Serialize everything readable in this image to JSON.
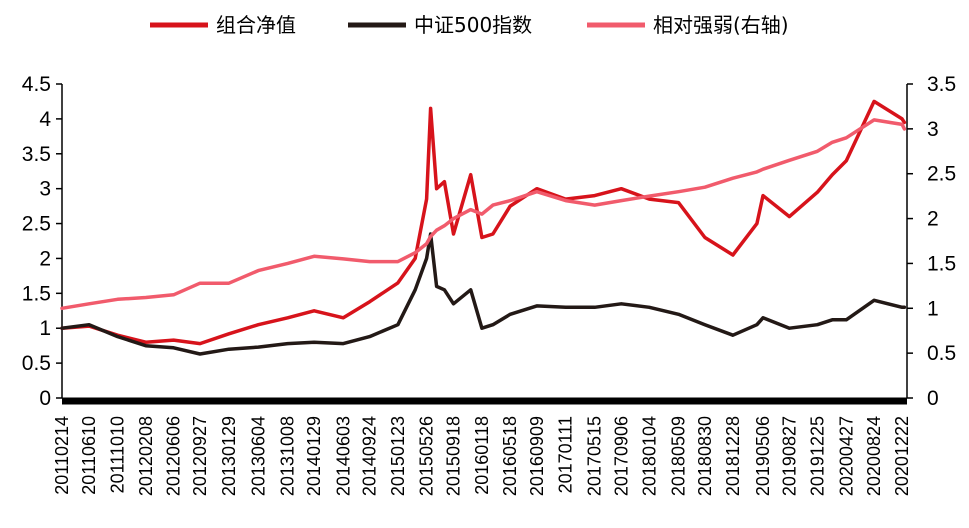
{
  "chart_data": {
    "type": "line",
    "title": "",
    "legend_position": "top",
    "grid": false,
    "y_left": {
      "min": 0,
      "max": 4.5,
      "ticks": [
        "0",
        "0.5",
        "1",
        "1.5",
        "2",
        "2.5",
        "3",
        "3.5",
        "4",
        "4.5"
      ]
    },
    "y_right": {
      "min": 0,
      "max": 3.5,
      "ticks": [
        "0",
        "0.5",
        "1",
        "1.5",
        "2",
        "2.5",
        "3",
        "3.5"
      ]
    },
    "x_tick_labels": [
      "20110214",
      "20110610",
      "20111010",
      "20120208",
      "20120606",
      "20120927",
      "20130129",
      "20130604",
      "20131008",
      "20140129",
      "20140603",
      "20140924",
      "20150123",
      "20150526",
      "20150918",
      "20160118",
      "20160518",
      "20160909",
      "20170111",
      "20170515",
      "20170906",
      "20180104",
      "20180509",
      "20180830",
      "20181228",
      "20190506",
      "20190827",
      "20191225",
      "20200427",
      "20200824",
      "20201222"
    ],
    "series": [
      {
        "name": "组合净值",
        "axis": "left",
        "color": "#d7131b",
        "x": [
          "20110214",
          "20110610",
          "20111010",
          "20120208",
          "20120606",
          "20120927",
          "20130129",
          "20130604",
          "20131008",
          "20140129",
          "20140603",
          "20140924",
          "20150123",
          "20150407",
          "20150526",
          "20150612",
          "20150708",
          "20150810",
          "20150918",
          "20151201",
          "20160118",
          "20160305",
          "20160518",
          "20160909",
          "20170111",
          "20170515",
          "20170906",
          "20180104",
          "20180509",
          "20180830",
          "20181228",
          "20190410",
          "20190506",
          "20190827",
          "20191225",
          "20200227",
          "20200427",
          "20200824",
          "20201222",
          "20210101"
        ],
        "values": [
          1.0,
          1.03,
          0.9,
          0.8,
          0.83,
          0.78,
          0.92,
          1.05,
          1.15,
          1.25,
          1.15,
          1.38,
          1.65,
          2.0,
          2.85,
          4.15,
          3.0,
          3.1,
          2.35,
          3.2,
          2.3,
          2.35,
          2.75,
          3.0,
          2.85,
          2.9,
          3.0,
          2.85,
          2.8,
          2.3,
          2.05,
          2.5,
          2.9,
          2.6,
          2.95,
          3.2,
          3.4,
          4.25,
          4.0,
          3.95
        ]
      },
      {
        "name": "中证500指数",
        "axis": "left",
        "color": "#231916",
        "x": [
          "20110214",
          "20110610",
          "20111010",
          "20120208",
          "20120606",
          "20120927",
          "20130129",
          "20130604",
          "20131008",
          "20140129",
          "20140603",
          "20140924",
          "20150123",
          "20150407",
          "20150526",
          "20150612",
          "20150708",
          "20150810",
          "20150918",
          "20151201",
          "20160118",
          "20160305",
          "20160518",
          "20160909",
          "20170111",
          "20170515",
          "20170906",
          "20180104",
          "20180509",
          "20180830",
          "20181228",
          "20190410",
          "20190506",
          "20190827",
          "20191225",
          "20200227",
          "20200427",
          "20200824",
          "20201222",
          "20210101"
        ],
        "values": [
          1.0,
          1.05,
          0.88,
          0.75,
          0.72,
          0.63,
          0.7,
          0.73,
          0.78,
          0.8,
          0.78,
          0.88,
          1.05,
          1.55,
          2.0,
          2.35,
          1.6,
          1.55,
          1.35,
          1.55,
          1.0,
          1.05,
          1.2,
          1.32,
          1.3,
          1.3,
          1.35,
          1.3,
          1.2,
          1.05,
          0.9,
          1.05,
          1.15,
          1.0,
          1.05,
          1.12,
          1.12,
          1.4,
          1.3,
          1.3
        ]
      },
      {
        "name": "相对强弱(右轴)",
        "axis": "right",
        "color": "#f15b6c",
        "x": [
          "20110214",
          "20110610",
          "20111010",
          "20120208",
          "20120606",
          "20120927",
          "20130129",
          "20130604",
          "20131008",
          "20140129",
          "20140603",
          "20140924",
          "20150123",
          "20150407",
          "20150526",
          "20150612",
          "20150708",
          "20150810",
          "20150918",
          "20151201",
          "20160118",
          "20160305",
          "20160518",
          "20160909",
          "20170111",
          "20170515",
          "20170906",
          "20180104",
          "20180509",
          "20180830",
          "20181228",
          "20190410",
          "20190506",
          "20190827",
          "20191225",
          "20200227",
          "20200427",
          "20200824",
          "20201222",
          "20210101"
        ],
        "values": [
          1.0,
          1.05,
          1.1,
          1.12,
          1.15,
          1.28,
          1.28,
          1.42,
          1.5,
          1.58,
          1.55,
          1.52,
          1.52,
          1.62,
          1.72,
          1.8,
          1.87,
          1.92,
          2.0,
          2.1,
          2.05,
          2.15,
          2.2,
          2.3,
          2.2,
          2.15,
          2.2,
          2.25,
          2.3,
          2.35,
          2.45,
          2.52,
          2.55,
          2.65,
          2.75,
          2.85,
          2.9,
          3.1,
          3.05,
          3.0
        ]
      }
    ]
  }
}
